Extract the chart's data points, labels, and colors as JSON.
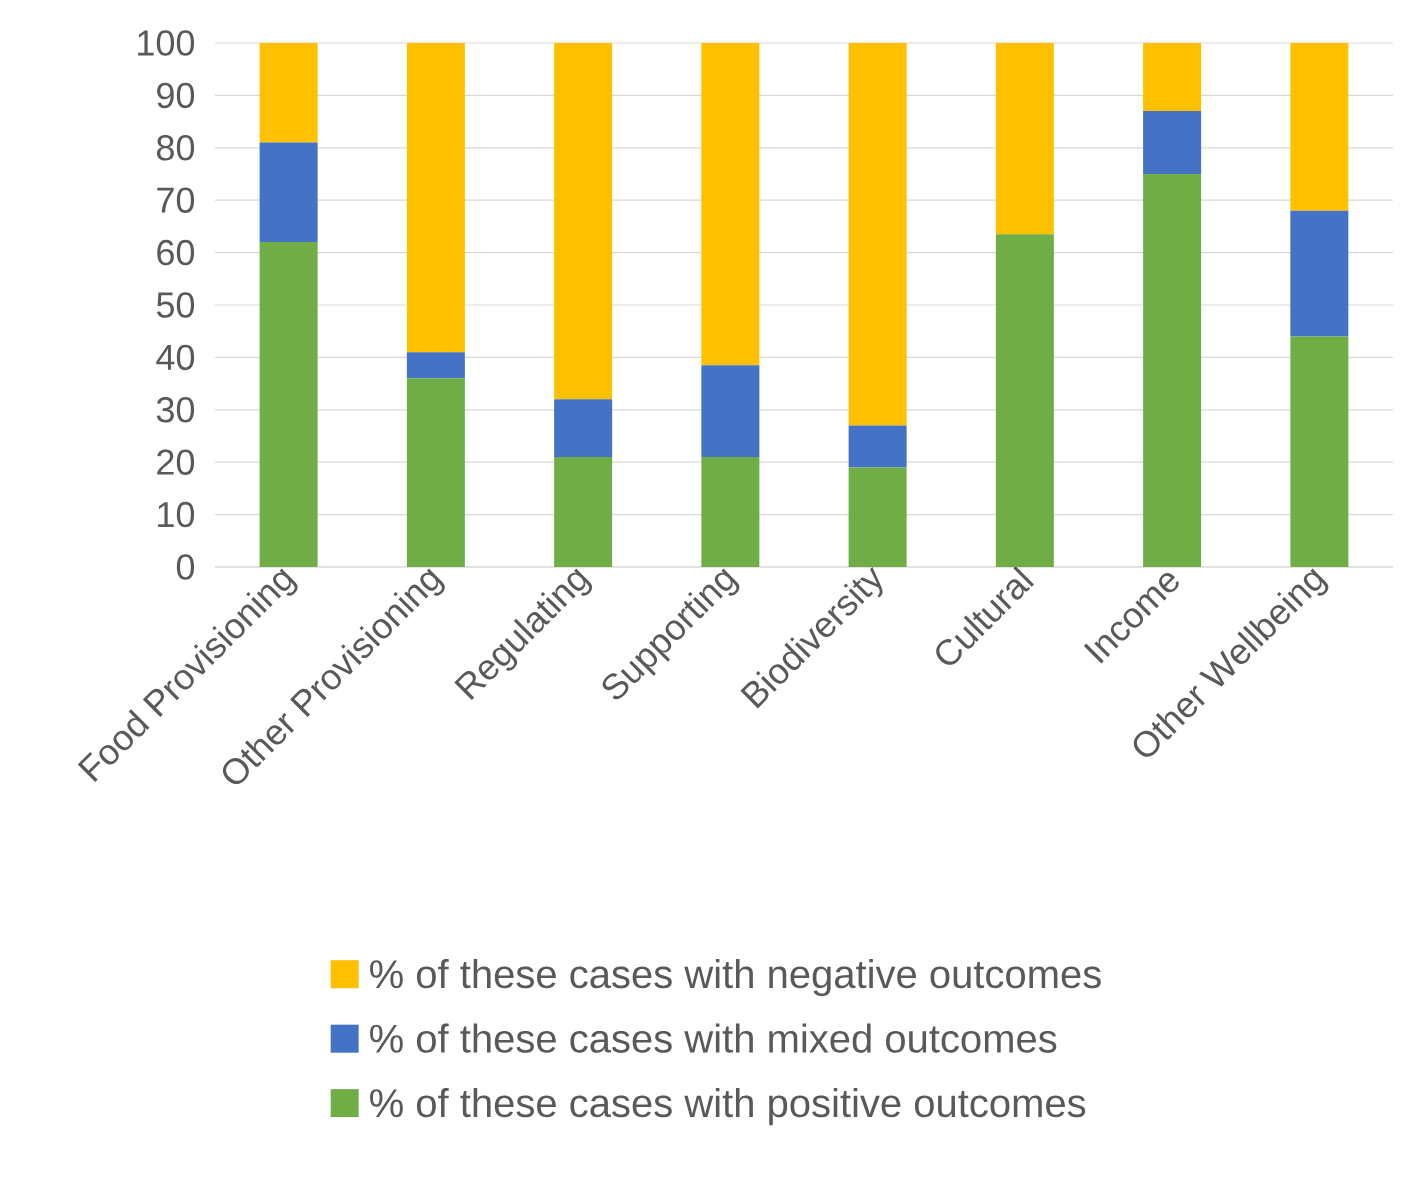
{
  "chart_data": {
    "type": "bar",
    "stacked": true,
    "categories": [
      "Food Provisioning",
      "Other Provisioning",
      "Regulating",
      "Supporting",
      "Biodiversity",
      "Cultural",
      "Income",
      "Other Wellbeing"
    ],
    "series": [
      {
        "name": "% of these cases with positive outcomes",
        "color": "#70ad47",
        "values": [
          62,
          36,
          21,
          21,
          19,
          63.5,
          75,
          44
        ]
      },
      {
        "name": "% of these cases with mixed outcomes",
        "color": "#4472c4",
        "values": [
          19,
          5,
          11,
          17.5,
          8,
          0,
          12,
          24
        ]
      },
      {
        "name": "% of these cases with negative outcomes",
        "color": "#ffc000",
        "values": [
          19,
          59,
          68,
          61.5,
          73,
          36.5,
          13,
          32
        ]
      }
    ],
    "ylim": [
      0,
      100
    ],
    "yticks": [
      0,
      10,
      20,
      30,
      40,
      50,
      60,
      70,
      80,
      90,
      100
    ],
    "grid": "y",
    "legend": "bottom"
  }
}
